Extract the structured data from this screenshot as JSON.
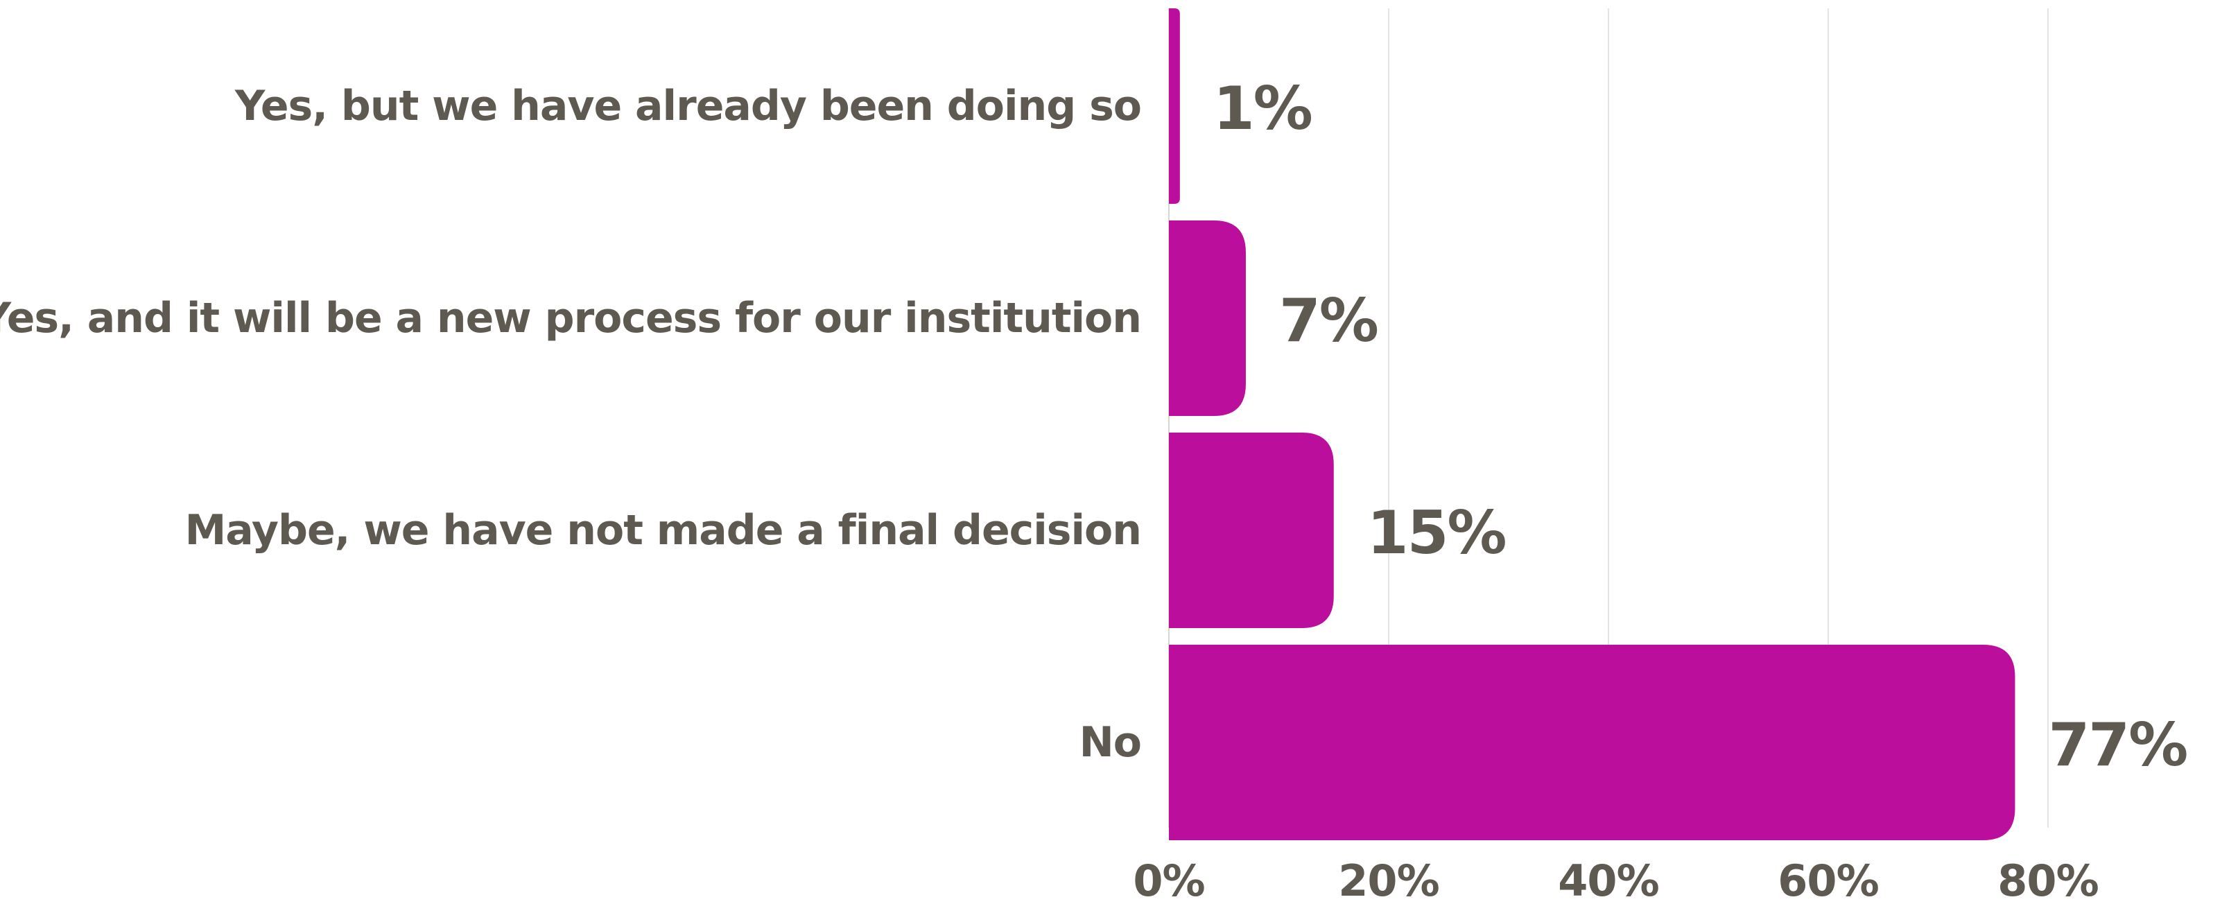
{
  "chart_data": {
    "type": "bar",
    "orientation": "horizontal",
    "categories": [
      "Yes, but we have already been doing so",
      "Yes, and it will be a new process for our institution",
      "Maybe, we have not made a final decision",
      "No"
    ],
    "values": [
      1,
      7,
      15,
      77
    ],
    "value_labels": [
      "1%",
      "7%",
      "15%",
      "77%"
    ],
    "xlim": [
      0,
      80
    ],
    "xticks": [
      0,
      20,
      40,
      60,
      80
    ],
    "xtick_labels": [
      "0%",
      "20%",
      "40%",
      "60%",
      "80%"
    ],
    "grid": true,
    "legend": "none",
    "bar_color": "#bb0e9c",
    "text_color": "#5f5a51"
  }
}
